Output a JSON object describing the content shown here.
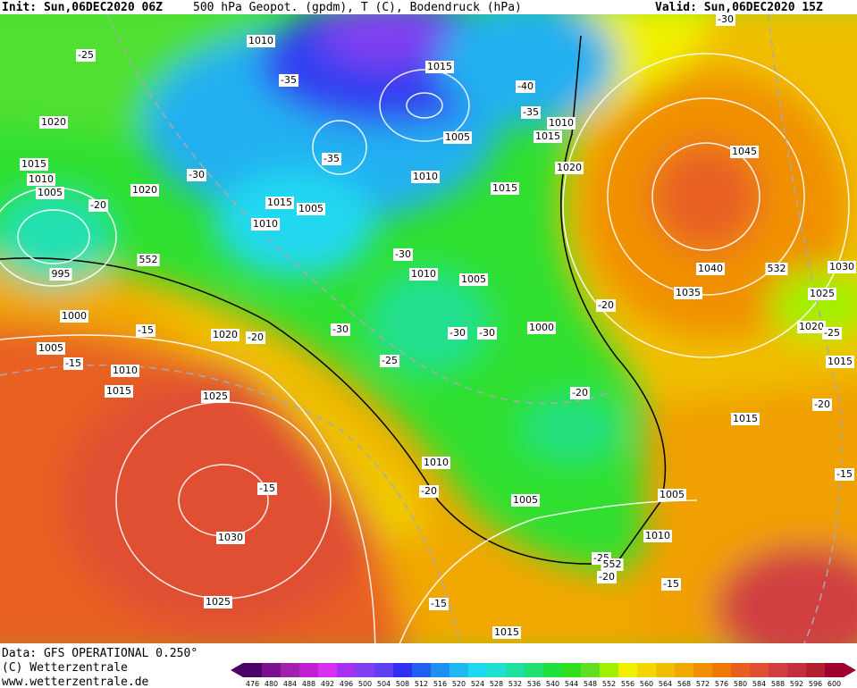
{
  "header": {
    "init": "Init: Sun,06DEC2020 06Z",
    "title": "500 hPa Geopot. (gpdm), T (C), Bodendruck (hPa)",
    "valid": "Valid: Sun,06DEC2020 15Z"
  },
  "footer": {
    "source": "Data: GFS OPERATIONAL 0.250°",
    "copyright": "(C) Wetterzentrale",
    "url": "www.wetterzentrale.de"
  },
  "colorbar": {
    "labels": [
      476,
      480,
      484,
      488,
      492,
      496,
      500,
      504,
      508,
      512,
      516,
      520,
      524,
      528,
      532,
      536,
      540,
      544,
      548,
      552,
      556,
      560,
      564,
      568,
      572,
      576,
      580,
      584,
      588,
      592,
      596,
      600
    ],
    "colors": [
      "#4b0066",
      "#7a1090",
      "#a020b0",
      "#c020d0",
      "#d830f0",
      "#a830f0",
      "#8040f0",
      "#6040f0",
      "#3030f0",
      "#2060f0",
      "#2090f0",
      "#20b8f0",
      "#20d8f0",
      "#20e0d0",
      "#20e0a0",
      "#20e070",
      "#20e040",
      "#30e020",
      "#60e020",
      "#a0f000",
      "#f0f000",
      "#f0d800",
      "#f0c000",
      "#f0a800",
      "#f09000",
      "#f07800",
      "#e86020",
      "#e05030",
      "#d04040",
      "#c03040",
      "#b02030",
      "#a00030"
    ]
  },
  "map_labels": [
    "1010",
    "-25",
    "1015",
    "-35",
    "-40",
    "-35",
    "1010",
    "1020",
    "1005",
    "1015",
    "-35",
    "1045",
    "1015",
    "1020",
    "1010",
    "-30",
    "1010",
    "1005",
    "1020",
    "1015",
    "-20",
    "1015",
    "1005",
    "1010",
    "-30",
    "552",
    "995",
    "1040",
    "532",
    "1030",
    "1010",
    "1005",
    "1035",
    "1025",
    "1000",
    "-20",
    "-15",
    "1000",
    "-30",
    "-30",
    "-30",
    "1020",
    "-20",
    "1020",
    "-25",
    "1005",
    "-15",
    "-25",
    "1015",
    "1010",
    "1015",
    "1025",
    "-20",
    "-20",
    "1015",
    "1010",
    "-15",
    "-15",
    "-20",
    "1005",
    "1005",
    "1030",
    "1010",
    "-25",
    "552",
    "-20",
    "-15",
    "-15",
    "1025",
    "1015",
    "-30"
  ]
}
